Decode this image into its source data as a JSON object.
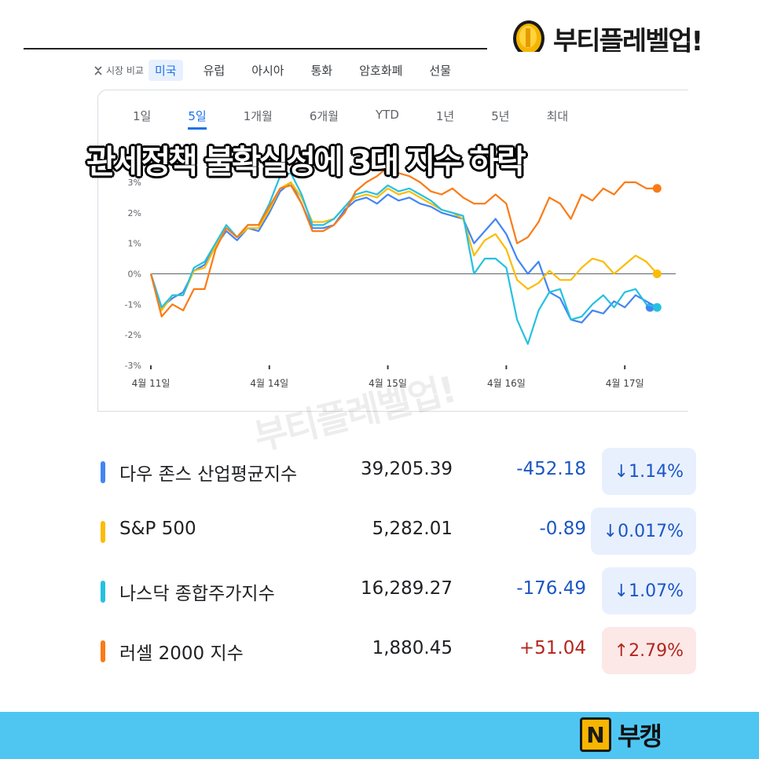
{
  "brand": {
    "name": "부티플레벨업!",
    "icon": "gold-coin-icon"
  },
  "market_tabs": {
    "compare_label": "시장 비교",
    "tabs": [
      "미국",
      "유럽",
      "아시아",
      "통화",
      "암호화폐",
      "선물"
    ],
    "active": "미국"
  },
  "ranges": {
    "items": [
      "1일",
      "5일",
      "1개월",
      "6개월",
      "YTD",
      "1년",
      "5년",
      "최대"
    ],
    "active": "5일"
  },
  "headline": "관세정책  불확실성에 3대 지수 하락",
  "watermark": "부티플레벨업!",
  "indices": [
    {
      "name": "다우 존스 산업평균지수",
      "price": "39,205.39",
      "change": "-452.18",
      "percent": "↓1.14%",
      "direction": "down",
      "color": "#4285f4"
    },
    {
      "name": "S&P 500",
      "price": "5,282.01",
      "change": "-0.89",
      "percent": "↓0.017%",
      "direction": "down",
      "color": "#fbbc04"
    },
    {
      "name": "나스닥 종합주가지수",
      "price": "16,289.27",
      "change": "-176.49",
      "percent": "↓1.07%",
      "direction": "down",
      "color": "#24c1e0"
    },
    {
      "name": "러셀 2000 지수",
      "price": "1,880.45",
      "change": "+51.04",
      "percent": "↑2.79%",
      "direction": "up",
      "color": "#fa7b17"
    }
  ],
  "footer": {
    "badge": "N",
    "text": "부캥",
    "background": "#4fc6f2"
  },
  "chart_data": {
    "type": "line",
    "title": "",
    "xlabel": "",
    "ylabel": "",
    "x_ticks": [
      "4월 11일",
      "4월 14일",
      "4월 15일",
      "4월 16일",
      "4월 17일"
    ],
    "y_ticks": [
      "3%",
      "2%",
      "1%",
      "0%",
      "-1%",
      "-2%",
      "-3%"
    ],
    "ylim": [
      -3,
      3.5
    ],
    "xlim": [
      0,
      24
    ],
    "zero_line": true,
    "series": [
      {
        "name": "다우 존스 산업평균지수",
        "color": "#4285f4",
        "x": [
          0,
          0.5,
          1,
          1.5,
          2,
          2.5,
          3,
          3.5,
          4,
          4.5,
          5,
          5.5,
          6,
          6.5,
          7,
          7.5,
          8,
          8.5,
          9,
          9.5,
          10,
          10.5,
          11,
          11.5,
          12,
          12.5,
          13,
          13.5,
          14,
          14.5,
          15,
          15.5,
          16,
          16.5,
          17,
          17.5,
          18,
          18.5,
          19,
          19.5,
          20,
          20.5,
          21,
          21.5,
          22,
          22.5,
          23,
          23.5
        ],
        "y": [
          0,
          -1.1,
          -0.8,
          -0.6,
          0.1,
          0.3,
          0.9,
          1.4,
          1.1,
          1.5,
          1.4,
          2.0,
          2.7,
          3.0,
          2.3,
          1.5,
          1.5,
          1.6,
          2.1,
          2.4,
          2.5,
          2.3,
          2.6,
          2.4,
          2.5,
          2.3,
          2.2,
          2.0,
          1.9,
          1.8,
          1.0,
          1.4,
          1.8,
          1.3,
          0.5,
          0.0,
          0.4,
          -0.6,
          -0.8,
          -1.5,
          -1.6,
          -1.2,
          -1.3,
          -0.9,
          -1.1,
          -0.7,
          -0.9,
          -1.1
        ]
      },
      {
        "name": "S&P 500",
        "color": "#fbbc04",
        "x": [
          0,
          0.5,
          1,
          1.5,
          2,
          2.5,
          3,
          3.5,
          4,
          4.5,
          5,
          5.5,
          6,
          6.5,
          7,
          7.5,
          8,
          8.5,
          9,
          9.5,
          10,
          10.5,
          11,
          11.5,
          12,
          12.5,
          13,
          13.5,
          14,
          14.5,
          15,
          15.5,
          16,
          16.5,
          17,
          17.5,
          18,
          18.5,
          19,
          19.5,
          20,
          20.5,
          21,
          21.5,
          22,
          22.5,
          23,
          23.5
        ],
        "y": [
          0,
          -1.2,
          -0.7,
          -0.7,
          0.1,
          0.2,
          0.9,
          1.5,
          1.2,
          1.5,
          1.5,
          2.1,
          2.8,
          3.0,
          2.5,
          1.7,
          1.7,
          1.8,
          2.2,
          2.5,
          2.6,
          2.5,
          2.8,
          2.6,
          2.7,
          2.5,
          2.3,
          2.1,
          2.0,
          1.8,
          0.6,
          1.1,
          1.3,
          0.8,
          -0.2,
          -0.5,
          -0.3,
          0.1,
          -0.2,
          -0.2,
          0.2,
          0.5,
          0.4,
          0.0,
          0.3,
          0.6,
          0.4,
          0.0
        ]
      },
      {
        "name": "나스닥 종합주가지수",
        "color": "#24c1e0",
        "x": [
          0,
          0.5,
          1,
          1.5,
          2,
          2.5,
          3,
          3.5,
          4,
          4.5,
          5,
          5.5,
          6,
          6.5,
          7,
          7.5,
          8,
          8.5,
          9,
          9.5,
          10,
          10.5,
          11,
          11.5,
          12,
          12.5,
          13,
          13.5,
          14,
          14.5,
          15,
          15.5,
          16,
          16.5,
          17,
          17.5,
          18,
          18.5,
          19,
          19.5,
          20,
          20.5,
          21,
          21.5,
          22,
          22.5,
          23,
          23.5
        ],
        "y": [
          0,
          -1.1,
          -0.7,
          -0.7,
          0.2,
          0.4,
          1.0,
          1.6,
          1.2,
          1.6,
          1.6,
          2.3,
          3.2,
          3.3,
          2.6,
          1.6,
          1.6,
          1.8,
          2.2,
          2.6,
          2.7,
          2.6,
          2.9,
          2.7,
          2.8,
          2.6,
          2.4,
          2.1,
          2.0,
          1.9,
          0.0,
          0.5,
          0.5,
          0.2,
          -1.5,
          -2.3,
          -1.2,
          -0.6,
          -0.5,
          -1.5,
          -1.4,
          -1.0,
          -0.7,
          -1.1,
          -0.6,
          -0.5,
          -1.0,
          -1.1
        ]
      },
      {
        "name": "러셀 2000 지수",
        "color": "#fa7b17",
        "x": [
          0,
          0.5,
          1,
          1.5,
          2,
          2.5,
          3,
          3.5,
          4,
          4.5,
          5,
          5.5,
          6,
          6.5,
          7,
          7.5,
          8,
          8.5,
          9,
          9.5,
          10,
          10.5,
          11,
          11.5,
          12,
          12.5,
          13,
          13.5,
          14,
          14.5,
          15,
          15.5,
          16,
          16.5,
          17,
          17.5,
          18,
          18.5,
          19,
          19.5,
          20,
          20.5,
          21,
          21.5,
          22,
          22.5,
          23,
          23.5
        ],
        "y": [
          0,
          -1.4,
          -1.0,
          -1.2,
          -0.5,
          -0.5,
          0.8,
          1.5,
          1.2,
          1.6,
          1.6,
          2.2,
          2.8,
          2.9,
          2.3,
          1.4,
          1.4,
          1.6,
          2.0,
          2.7,
          3.0,
          3.2,
          3.5,
          3.3,
          3.2,
          3.0,
          2.7,
          2.6,
          2.8,
          2.5,
          2.3,
          2.3,
          2.6,
          2.3,
          1.0,
          1.2,
          1.7,
          2.5,
          2.3,
          1.8,
          2.6,
          2.4,
          2.8,
          2.6,
          3.0,
          3.0,
          2.8,
          2.8
        ]
      }
    ]
  }
}
